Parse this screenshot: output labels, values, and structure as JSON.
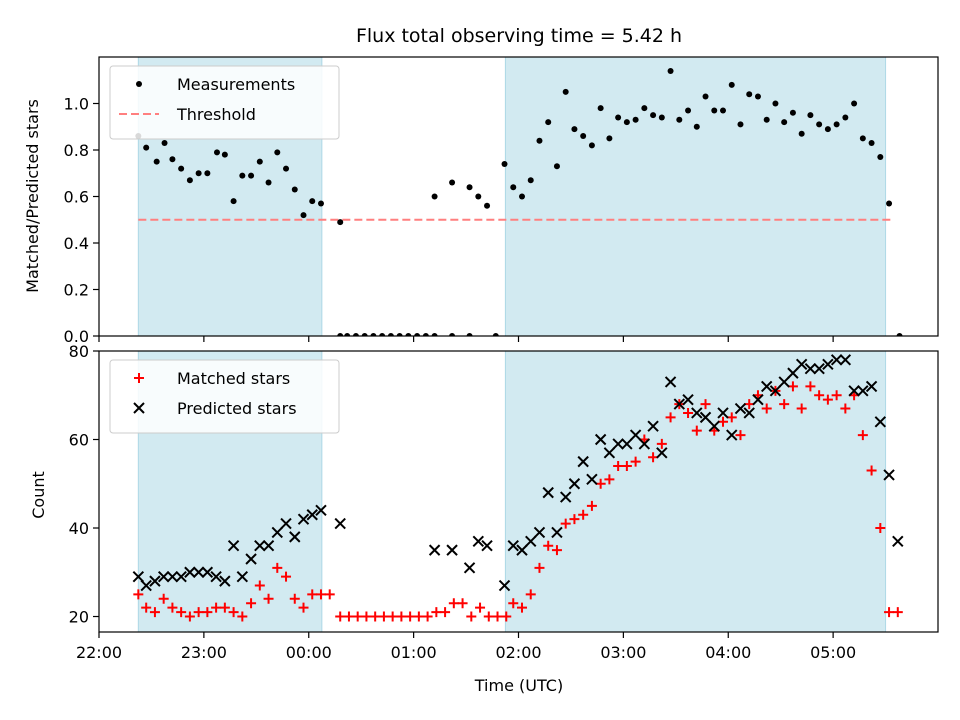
{
  "chart_data": [
    {
      "type": "scatter",
      "title": "Flux total observing time = 5.42 h",
      "xlabel": "",
      "ylabel": "Matched/Predicted stars",
      "xlim": [
        0,
        480
      ],
      "ylim": [
        0,
        1.2
      ],
      "yticks": [
        0.0,
        0.2,
        0.4,
        0.6,
        0.8,
        1.0
      ],
      "ytick_labels": [
        "0.0",
        "0.2",
        "0.4",
        "0.6",
        "0.8",
        "1.0"
      ],
      "legend_position": "top-left",
      "shaded_intervals": [
        [
          22.5,
          127.5
        ],
        [
          232.5,
          450.0
        ]
      ],
      "shade_color": "#add8e6",
      "threshold": {
        "name": "Threshold",
        "value": 0.5,
        "x_range": [
          22.5,
          454
        ],
        "color": "#ff7f7f",
        "style": "dashed"
      },
      "series": [
        {
          "name": "Measurements",
          "color": "#000000",
          "marker": "dot",
          "points": [
            [
              22.5,
              0.86
            ],
            [
              27,
              0.81
            ],
            [
              33,
              0.75
            ],
            [
              37.5,
              0.83
            ],
            [
              42,
              0.76
            ],
            [
              47,
              0.72
            ],
            [
              52,
              0.67
            ],
            [
              57,
              0.7
            ],
            [
              62,
              0.7
            ],
            [
              67.5,
              0.79
            ],
            [
              72,
              0.78
            ],
            [
              77,
              0.58
            ],
            [
              82,
              0.69
            ],
            [
              87,
              0.69
            ],
            [
              92,
              0.75
            ],
            [
              97,
              0.66
            ],
            [
              102,
              0.79
            ],
            [
              107,
              0.72
            ],
            [
              112,
              0.63
            ],
            [
              117,
              0.52
            ],
            [
              122,
              0.58
            ],
            [
              127,
              0.57
            ],
            [
              138,
              0.49
            ],
            [
              138,
              0.0
            ],
            [
              142,
              0.0
            ],
            [
              147,
              0.0
            ],
            [
              152,
              0.0
            ],
            [
              157,
              0.0
            ],
            [
              162,
              0.0
            ],
            [
              167,
              0.0
            ],
            [
              172,
              0.0
            ],
            [
              177,
              0.0
            ],
            [
              182,
              0.0
            ],
            [
              187,
              0.0
            ],
            [
              192,
              0.0
            ],
            [
              202,
              0.0
            ],
            [
              212,
              0.0
            ],
            [
              227,
              0.0
            ],
            [
              458,
              0.0
            ],
            [
              192,
              0.6
            ],
            [
              202,
              0.66
            ],
            [
              212,
              0.64
            ],
            [
              217,
              0.6
            ],
            [
              222,
              0.56
            ],
            [
              232,
              0.74
            ],
            [
              237,
              0.64
            ],
            [
              242,
              0.6
            ],
            [
              247,
              0.67
            ],
            [
              252,
              0.84
            ],
            [
              257,
              0.92
            ],
            [
              262,
              0.73
            ],
            [
              267,
              1.05
            ],
            [
              272,
              0.89
            ],
            [
              277,
              0.86
            ],
            [
              282,
              0.82
            ],
            [
              287,
              0.98
            ],
            [
              292,
              0.85
            ],
            [
              297,
              0.94
            ],
            [
              302,
              0.92
            ],
            [
              307,
              0.93
            ],
            [
              312,
              0.98
            ],
            [
              317,
              0.95
            ],
            [
              322,
              0.94
            ],
            [
              327,
              1.14
            ],
            [
              332,
              0.93
            ],
            [
              337,
              0.97
            ],
            [
              342,
              0.9
            ],
            [
              347,
              1.03
            ],
            [
              352,
              0.97
            ],
            [
              357,
              0.97
            ],
            [
              362,
              1.08
            ],
            [
              367,
              0.91
            ],
            [
              372,
              1.04
            ],
            [
              377,
              1.03
            ],
            [
              382,
              0.93
            ],
            [
              387,
              1.0
            ],
            [
              392,
              0.92
            ],
            [
              397,
              0.96
            ],
            [
              402,
              0.87
            ],
            [
              407,
              0.95
            ],
            [
              412,
              0.91
            ],
            [
              417,
              0.89
            ],
            [
              422,
              0.91
            ],
            [
              427,
              0.94
            ],
            [
              432,
              1.0
            ],
            [
              437,
              0.85
            ],
            [
              442,
              0.83
            ],
            [
              447,
              0.77
            ],
            [
              452,
              0.57
            ]
          ]
        }
      ]
    },
    {
      "type": "scatter",
      "title": "",
      "xlabel": "Time (UTC)",
      "ylabel": "Count",
      "xlim": [
        0,
        480
      ],
      "ylim": [
        16.5,
        80
      ],
      "yticks": [
        20,
        40,
        60,
        80
      ],
      "ytick_labels": [
        "20",
        "40",
        "60",
        "80"
      ],
      "xticks": [
        0,
        60,
        120,
        180,
        240,
        300,
        360,
        420
      ],
      "xtick_labels": [
        "22:00",
        "23:00",
        "00:00",
        "01:00",
        "02:00",
        "03:00",
        "04:00",
        "05:00"
      ],
      "legend_position": "top-left",
      "shaded_intervals": [
        [
          22.5,
          127.5
        ],
        [
          232.5,
          450.0
        ]
      ],
      "shade_color": "#add8e6",
      "series": [
        {
          "name": "Matched stars",
          "color": "#ff0000",
          "marker": "plus",
          "points": [
            [
              22.5,
              25
            ],
            [
              27,
              22
            ],
            [
              32,
              21
            ],
            [
              37,
              24
            ],
            [
              42,
              22
            ],
            [
              47,
              21
            ],
            [
              52,
              20
            ],
            [
              57,
              21
            ],
            [
              62,
              21
            ],
            [
              67,
              22
            ],
            [
              72,
              22
            ],
            [
              77,
              21
            ],
            [
              82,
              20
            ],
            [
              87,
              23
            ],
            [
              92,
              27
            ],
            [
              97,
              24
            ],
            [
              102,
              31
            ],
            [
              107,
              29
            ],
            [
              112,
              24
            ],
            [
              117,
              22
            ],
            [
              122,
              25
            ],
            [
              127,
              25
            ],
            [
              132,
              25
            ],
            [
              138,
              20
            ],
            [
              143,
              20
            ],
            [
              148,
              20
            ],
            [
              153,
              20
            ],
            [
              158,
              20
            ],
            [
              163,
              20
            ],
            [
              168,
              20
            ],
            [
              173,
              20
            ],
            [
              178,
              20
            ],
            [
              183,
              20
            ],
            [
              188,
              20
            ],
            [
              193,
              21
            ],
            [
              198,
              21
            ],
            [
              203,
              23
            ],
            [
              208,
              23
            ],
            [
              213,
              20
            ],
            [
              218,
              22
            ],
            [
              223,
              20
            ],
            [
              228,
              20
            ],
            [
              233,
              20
            ],
            [
              237,
              23
            ],
            [
              242,
              22
            ],
            [
              247,
              25
            ],
            [
              252,
              31
            ],
            [
              257,
              36
            ],
            [
              262,
              35
            ],
            [
              267,
              41
            ],
            [
              272,
              42
            ],
            [
              277,
              43
            ],
            [
              282,
              45
            ],
            [
              287,
              50
            ],
            [
              292,
              51
            ],
            [
              297,
              54
            ],
            [
              302,
              54
            ],
            [
              307,
              55
            ],
            [
              312,
              60
            ],
            [
              317,
              56
            ],
            [
              322,
              59
            ],
            [
              327,
              65
            ],
            [
              332,
              68
            ],
            [
              337,
              66
            ],
            [
              342,
              62
            ],
            [
              347,
              68
            ],
            [
              352,
              62
            ],
            [
              357,
              64
            ],
            [
              362,
              65
            ],
            [
              367,
              61
            ],
            [
              372,
              68
            ],
            [
              377,
              70
            ],
            [
              382,
              67
            ],
            [
              387,
              71
            ],
            [
              392,
              68
            ],
            [
              397,
              72
            ],
            [
              402,
              67
            ],
            [
              407,
              72
            ],
            [
              412,
              70
            ],
            [
              417,
              69
            ],
            [
              422,
              70
            ],
            [
              427,
              67
            ],
            [
              432,
              70
            ],
            [
              437,
              61
            ],
            [
              442,
              53
            ],
            [
              447,
              40
            ],
            [
              452,
              21
            ],
            [
              457,
              21
            ]
          ]
        },
        {
          "name": "Predicted stars",
          "color": "#000000",
          "marker": "x",
          "points": [
            [
              22.5,
              29
            ],
            [
              27,
              27
            ],
            [
              32,
              28
            ],
            [
              37,
              29
            ],
            [
              42,
              29
            ],
            [
              47,
              29
            ],
            [
              52,
              30
            ],
            [
              57,
              30
            ],
            [
              62,
              30
            ],
            [
              67,
              29
            ],
            [
              72,
              28
            ],
            [
              77,
              36
            ],
            [
              82,
              29
            ],
            [
              87,
              33
            ],
            [
              92,
              36
            ],
            [
              97,
              36
            ],
            [
              102,
              39
            ],
            [
              107,
              41
            ],
            [
              112,
              38
            ],
            [
              117,
              42
            ],
            [
              122,
              43
            ],
            [
              127,
              44
            ],
            [
              138,
              41
            ],
            [
              192,
              35
            ],
            [
              202,
              35
            ],
            [
              212,
              31
            ],
            [
              217,
              37
            ],
            [
              222,
              36
            ],
            [
              232,
              27
            ],
            [
              237,
              36
            ],
            [
              242,
              35
            ],
            [
              247,
              37
            ],
            [
              252,
              39
            ],
            [
              257,
              48
            ],
            [
              262,
              39
            ],
            [
              267,
              47
            ],
            [
              272,
              50
            ],
            [
              277,
              55
            ],
            [
              282,
              51
            ],
            [
              287,
              60
            ],
            [
              292,
              57
            ],
            [
              297,
              59
            ],
            [
              302,
              59
            ],
            [
              307,
              61
            ],
            [
              312,
              59
            ],
            [
              317,
              63
            ],
            [
              322,
              57
            ],
            [
              327,
              73
            ],
            [
              332,
              68
            ],
            [
              337,
              69
            ],
            [
              342,
              66
            ],
            [
              347,
              65
            ],
            [
              352,
              63
            ],
            [
              357,
              66
            ],
            [
              362,
              61
            ],
            [
              367,
              67
            ],
            [
              372,
              66
            ],
            [
              377,
              69
            ],
            [
              382,
              72
            ],
            [
              387,
              71
            ],
            [
              392,
              73
            ],
            [
              397,
              75
            ],
            [
              402,
              77
            ],
            [
              407,
              76
            ],
            [
              412,
              76
            ],
            [
              417,
              77
            ],
            [
              422,
              78
            ],
            [
              427,
              78
            ],
            [
              432,
              71
            ],
            [
              437,
              71
            ],
            [
              442,
              72
            ],
            [
              447,
              64
            ],
            [
              452,
              52
            ],
            [
              457,
              37
            ]
          ]
        }
      ]
    }
  ]
}
